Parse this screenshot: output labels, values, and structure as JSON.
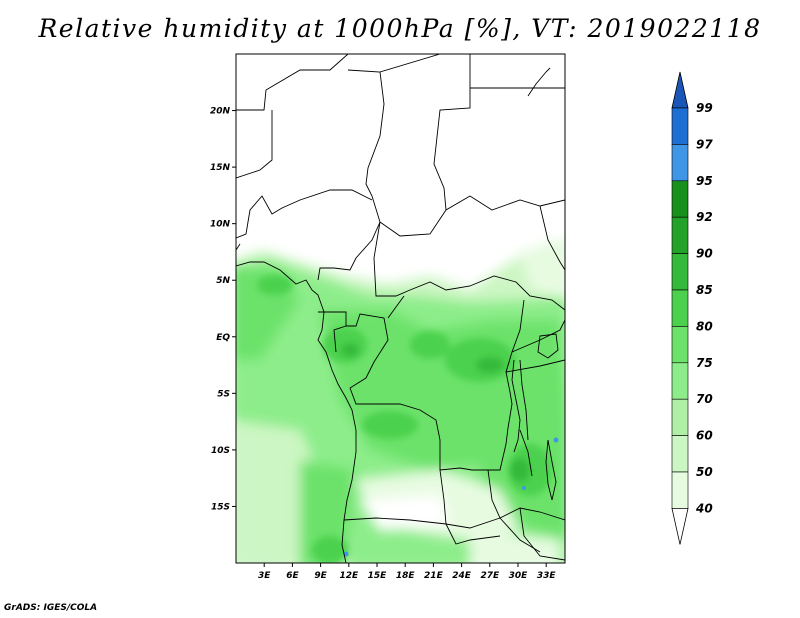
{
  "title": "Relative humidity at 1000hPa [%], VT: 2019022118",
  "credit": "GrADS: IGES/COLA",
  "map": {
    "lon_range": [
      0,
      35
    ],
    "lat_range": [
      -20,
      25
    ],
    "lat_ticks": [
      {
        "value": 20,
        "label": "20N"
      },
      {
        "value": 15,
        "label": "15N"
      },
      {
        "value": 10,
        "label": "10N"
      },
      {
        "value": 5,
        "label": "5N"
      },
      {
        "value": 0,
        "label": "EQ"
      },
      {
        "value": -5,
        "label": "5S"
      },
      {
        "value": -10,
        "label": "10S"
      },
      {
        "value": -15,
        "label": "15S"
      }
    ],
    "lon_ticks": [
      {
        "value": 3,
        "label": "3E"
      },
      {
        "value": 6,
        "label": "6E"
      },
      {
        "value": 9,
        "label": "9E"
      },
      {
        "value": 12,
        "label": "12E"
      },
      {
        "value": 15,
        "label": "15E"
      },
      {
        "value": 18,
        "label": "18E"
      },
      {
        "value": 21,
        "label": "21E"
      },
      {
        "value": 24,
        "label": "24E"
      },
      {
        "value": 27,
        "label": "27E"
      },
      {
        "value": 30,
        "label": "30E"
      },
      {
        "value": 33,
        "label": "33E"
      }
    ]
  },
  "colorbar": {
    "labels": [
      "99",
      "97",
      "95",
      "92",
      "90",
      "85",
      "80",
      "75",
      "70",
      "60",
      "50",
      "40"
    ],
    "colors": [
      "#1e6fd4",
      "#4096e6",
      "#18901c",
      "#23a229",
      "#35b93b",
      "#4cd14e",
      "#6ce26b",
      "#8ded8a",
      "#afefa6",
      "#ccf6c3",
      "#e7fbe1"
    ],
    "top_color": "#1a56b8",
    "bottom_color": "#ffffff"
  }
}
